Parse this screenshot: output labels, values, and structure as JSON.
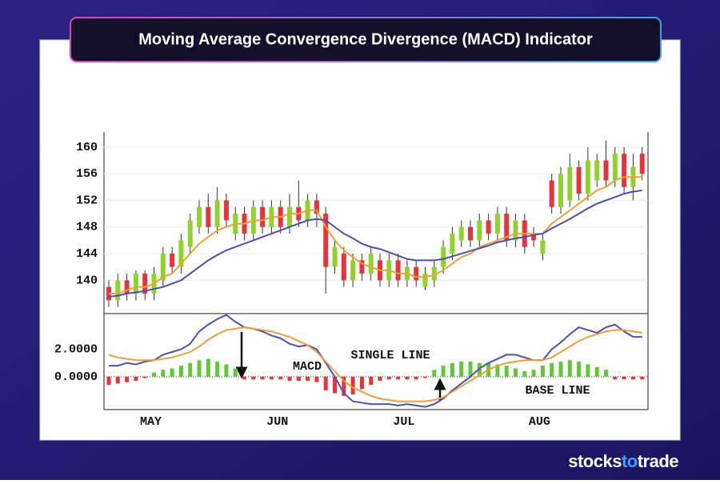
{
  "chart_data": [
    {
      "type": "candlestick",
      "title": "Moving Average Convergence Divergence (MACD) Indicator",
      "open": [
        139,
        137,
        140,
        138,
        141,
        138,
        140,
        144,
        142,
        145,
        148,
        151,
        148,
        152,
        147,
        150,
        147,
        151,
        148,
        151,
        148,
        151,
        149,
        152,
        150,
        142,
        144,
        140,
        143,
        141,
        143,
        140,
        143,
        140,
        142,
        139,
        140,
        142,
        144,
        146,
        148,
        146,
        149,
        147,
        150,
        146,
        149,
        147,
        144,
        155,
        151,
        152,
        157,
        153,
        155,
        158,
        155,
        159,
        154,
        159
      ],
      "high": [
        140,
        141,
        141,
        141.5,
        141.5,
        142,
        145,
        145,
        147,
        150,
        152,
        153,
        154,
        153,
        151,
        151,
        152,
        152,
        152,
        152,
        153,
        155,
        153,
        153,
        151,
        146,
        145,
        144,
        144,
        145,
        144,
        144,
        144,
        143,
        143,
        142,
        143,
        146,
        148,
        149,
        149,
        150,
        150,
        151,
        151,
        150,
        150,
        148,
        147,
        156,
        157,
        159,
        158,
        160,
        159,
        161,
        160,
        160,
        159,
        160
      ],
      "low": [
        136,
        136,
        137,
        137,
        137,
        137,
        139,
        141,
        141,
        144,
        147,
        147,
        147,
        148,
        146,
        146,
        146,
        147,
        147,
        147,
        147,
        148,
        148,
        148,
        138,
        141,
        139,
        139,
        140,
        140,
        139,
        139,
        139,
        139,
        139,
        138.5,
        139,
        141,
        143,
        145,
        145,
        145,
        146,
        146,
        145,
        145,
        144,
        145,
        143,
        150,
        150,
        151,
        152,
        152,
        154,
        154,
        154,
        153,
        152,
        155
      ],
      "close": [
        137,
        140,
        138,
        141,
        138,
        141,
        144,
        142,
        146,
        149,
        151,
        148,
        152,
        149,
        150,
        147,
        151,
        148,
        151,
        148,
        151,
        149,
        152,
        150,
        142,
        145,
        140,
        143,
        141,
        144,
        140,
        143,
        140,
        142,
        140,
        141,
        142,
        145,
        147,
        148,
        146,
        149,
        147,
        150,
        146,
        149,
        145,
        146,
        146,
        151,
        156,
        157,
        153,
        158,
        158,
        155,
        159,
        154,
        157,
        156
      ],
      "up_color": "#8fd42a",
      "down_color": "#e8323c",
      "lines": [
        {
          "color": "#f0a030",
          "values": [
            138,
            138,
            138.5,
            139,
            139,
            139.5,
            140.5,
            141,
            142.5,
            144,
            145.5,
            146.5,
            147.5,
            148,
            148.5,
            148.5,
            149,
            149,
            149.5,
            149.5,
            150,
            150,
            150.5,
            150.5,
            148,
            146,
            144.5,
            143.5,
            142.5,
            142,
            141.5,
            141.5,
            141,
            141,
            140.5,
            140.5,
            140.8,
            141.5,
            142.5,
            143.5,
            144,
            145,
            145.5,
            146,
            146.5,
            147,
            147,
            147,
            147,
            148.5,
            149.5,
            150.5,
            151.5,
            152.5,
            153.5,
            154,
            155,
            155.5,
            155.5,
            155.5
          ]
        },
        {
          "color": "#4b4fb8",
          "values": [
            137.5,
            137.7,
            138,
            138.2,
            138.4,
            138.7,
            139,
            139.5,
            140,
            141,
            142,
            143,
            143.8,
            144.5,
            145,
            145.5,
            146,
            146.5,
            147,
            147.5,
            148,
            148.5,
            149,
            149.2,
            149,
            148,
            147,
            146.3,
            145.5,
            145,
            144.7,
            144.2,
            143.7,
            143.2,
            143,
            143,
            143,
            143.2,
            143.6,
            144,
            144.4,
            144.8,
            145.2,
            145.7,
            146,
            146.3,
            146.5,
            146.8,
            147,
            147.8,
            148.5,
            149.2,
            150,
            150.8,
            151.5,
            152,
            152.5,
            153,
            153.3,
            153.5
          ]
        }
      ],
      "ylim": [
        135,
        162.5
      ],
      "yticks": [
        140,
        144,
        148,
        152,
        156,
        160
      ],
      "grid": true
    },
    {
      "type": "macd",
      "categories": [
        null,
        null,
        null,
        null,
        null,
        "MAY",
        null,
        null,
        null,
        null,
        null,
        null,
        null,
        null,
        null,
        null,
        null,
        null,
        null,
        "JUN",
        null,
        null,
        null,
        null,
        null,
        null,
        null,
        null,
        null,
        null,
        null,
        null,
        null,
        "JUL",
        null,
        null,
        null,
        null,
        null,
        null,
        null,
        null,
        null,
        null,
        null,
        null,
        null,
        null,
        "AUG",
        null,
        null,
        null,
        null,
        null,
        null,
        null,
        null,
        null,
        null,
        null
      ],
      "series": [
        {
          "color": "#4b4fb8",
          "values": [
            0.8,
            0.8,
            1.0,
            0.9,
            1.1,
            1.2,
            1.6,
            1.8,
            2.0,
            2.4,
            3.3,
            3.8,
            4.2,
            4.5,
            4.0,
            3.6,
            3.5,
            3.3,
            3.0,
            2.8,
            2.4,
            2.2,
            2.3,
            2.0,
            1.0,
            0.0,
            -1.2,
            -1.8,
            -1.9,
            -2.0,
            -2.0,
            -2.0,
            -2.1,
            -2.0,
            -2.1,
            -2.2,
            -2.0,
            -1.6,
            -1.0,
            -0.5,
            0.0,
            0.6,
            1.0,
            1.3,
            1.6,
            1.6,
            1.4,
            1.2,
            1.2,
            2.0,
            2.5,
            3.1,
            3.6,
            3.4,
            3.2,
            3.6,
            3.8,
            3.3,
            2.9,
            2.9
          ]
        },
        {
          "color": "#f0a030",
          "values": [
            1.6,
            1.4,
            1.3,
            1.2,
            1.2,
            1.2,
            1.3,
            1.4,
            1.6,
            1.8,
            2.2,
            2.7,
            3.1,
            3.4,
            3.5,
            3.6,
            3.5,
            3.4,
            3.3,
            3.1,
            2.9,
            2.6,
            2.3,
            1.8,
            1.1,
            0.4,
            -0.3,
            -0.8,
            -1.1,
            -1.4,
            -1.6,
            -1.7,
            -1.8,
            -1.8,
            -1.8,
            -1.8,
            -1.7,
            -1.5,
            -1.1,
            -0.7,
            -0.3,
            0.1,
            0.5,
            0.8,
            1.0,
            1.1,
            1.2,
            1.2,
            1.2,
            1.4,
            1.8,
            2.2,
            2.6,
            2.9,
            3.1,
            3.3,
            3.4,
            3.4,
            3.3,
            3.2
          ]
        }
      ],
      "histogram": {
        "up_color": "#5fc832",
        "down_color": "#e8323c",
        "values": [
          -0.6,
          -0.5,
          -0.4,
          -0.3,
          -0.1,
          0.3,
          0.5,
          0.6,
          0.8,
          1.0,
          1.2,
          1.3,
          1.1,
          0.9,
          0.6,
          -0.2,
          -0.2,
          -0.2,
          -0.2,
          -0.2,
          -0.3,
          -0.3,
          -0.3,
          -0.4,
          -1.0,
          -1.2,
          -1.4,
          -1.3,
          -0.9,
          -0.6,
          -0.3,
          -0.2,
          -0.2,
          -0.2,
          -0.2,
          -0.1,
          0.5,
          0.8,
          1.0,
          1.1,
          1.1,
          1.0,
          1.0,
          0.9,
          0.8,
          0.6,
          0.4,
          0.5,
          0.8,
          1.0,
          1.1,
          1.2,
          1.1,
          0.9,
          0.7,
          0.5,
          -0.2,
          -0.2,
          -0.2,
          -0.2
        ]
      },
      "annotations": [
        "MACD",
        "SINGLE LINE",
        "BASE LINE"
      ],
      "ylim": [
        -2.4,
        4.6
      ],
      "yticks": [
        {
          "value": 2,
          "label": "2.0000"
        },
        {
          "value": 0,
          "label": "0.0000"
        }
      ]
    }
  ],
  "brand": [
    "stocks",
    "to",
    "trade"
  ]
}
